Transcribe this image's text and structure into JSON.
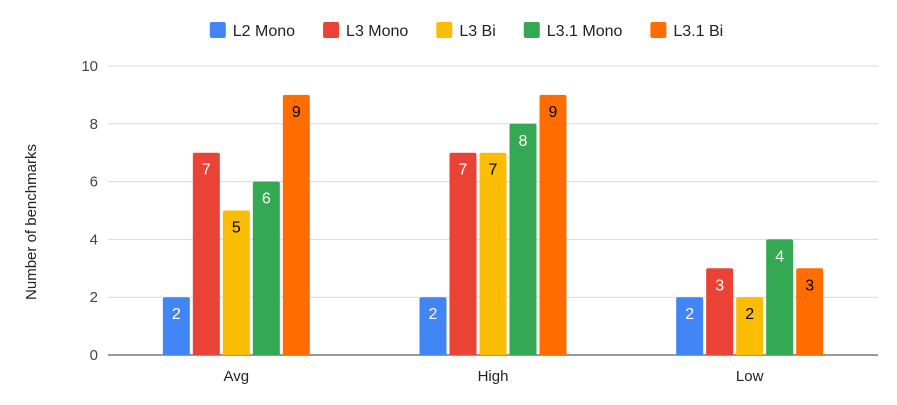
{
  "chart_data": {
    "type": "bar",
    "title": "",
    "xlabel": "",
    "ylabel": "Number of benchmarks",
    "categories": [
      "Avg",
      "High",
      "Low"
    ],
    "ylim": [
      0,
      10
    ],
    "yticks": [
      0,
      2,
      4,
      6,
      8,
      10
    ],
    "grid": true,
    "legend_position": "top",
    "series": [
      {
        "name": "L2 Mono",
        "color": "#4285F4",
        "label_color": "#ffffff",
        "values": [
          2,
          2,
          2
        ]
      },
      {
        "name": "L3 Mono",
        "color": "#EA4335",
        "label_color": "#ffffff",
        "values": [
          7,
          7,
          3
        ]
      },
      {
        "name": "L3 Bi",
        "color": "#FBBC04",
        "label_color": "#000000",
        "values": [
          5,
          7,
          2
        ]
      },
      {
        "name": "L3.1 Mono",
        "color": "#34A853",
        "label_color": "#ffffff",
        "values": [
          6,
          8,
          4
        ]
      },
      {
        "name": "L3.1 Bi",
        "color": "#FF6D01",
        "label_color": "#000000",
        "values": [
          9,
          9,
          3
        ]
      }
    ]
  }
}
